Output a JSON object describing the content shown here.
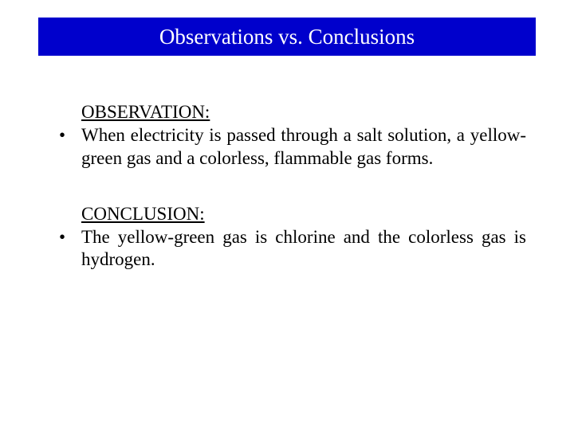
{
  "title": {
    "text": "Observations vs. Conclusions",
    "background_color": "#0000cc",
    "text_color": "#ffffff",
    "fontsize": 27
  },
  "sections": [
    {
      "heading": "OBSERVATION:",
      "bullet": "•",
      "body": "When electricity is passed through a salt solution, a yellow-green gas and a colorless, flammable gas forms."
    },
    {
      "heading": "CONCLUSION:",
      "bullet": "•",
      "body": "The yellow-green gas is chlorine and the colorless gas is hydrogen."
    }
  ],
  "styling": {
    "page_background": "#ffffff",
    "body_fontsize": 23,
    "body_color": "#000000",
    "font_family": "Times New Roman",
    "text_align": "justify",
    "heading_underline": true
  }
}
